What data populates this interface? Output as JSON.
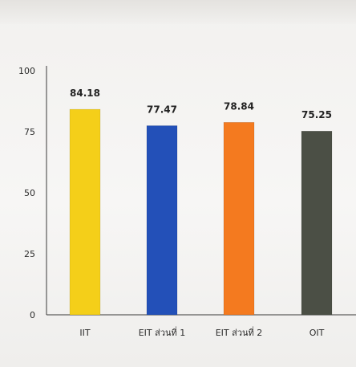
{
  "chart_data": {
    "type": "bar",
    "categories": [
      "IIT",
      "EIT ส่วนที่ 1",
      "EIT ส่วนที่ 2",
      "OIT"
    ],
    "values": [
      84.18,
      77.47,
      78.84,
      75.25
    ],
    "data_labels": [
      "84.18",
      "77.47",
      "78.84",
      "75.25"
    ],
    "colors": [
      "#f4cf19",
      "#2350b8",
      "#f47a1f",
      "#4b4f45"
    ],
    "yticks": [
      "0",
      "25",
      "50",
      "75",
      "100"
    ],
    "ylim": [
      0,
      100
    ],
    "grid": false,
    "title": "",
    "xlabel": "",
    "ylabel": ""
  }
}
